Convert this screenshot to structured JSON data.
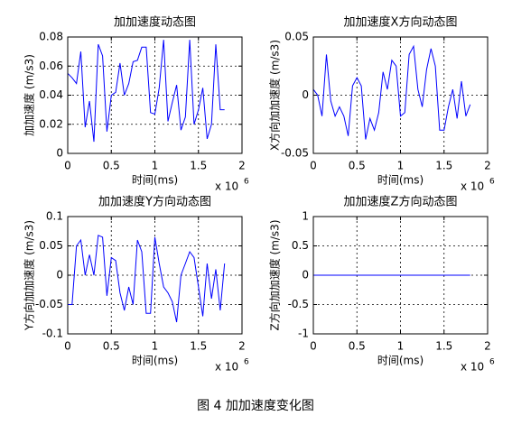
{
  "chart_data": [
    {
      "type": "line",
      "title": "加加速度动态图",
      "xlabel": "时间(ms)",
      "ylabel": "加加速度 (m/s3)",
      "x_scale": {
        "base": "x 10",
        "exponent": "6"
      },
      "xlim": [
        0,
        2
      ],
      "xticks": [
        0,
        0.5,
        1,
        1.5,
        2
      ],
      "ylim": [
        0,
        0.08
      ],
      "yticks": [
        0,
        0.02,
        0.04,
        0.06,
        0.08
      ],
      "grid": true,
      "color": "#0000ff",
      "x": [
        0,
        0.05,
        0.1,
        0.15,
        0.2,
        0.25,
        0.3,
        0.35,
        0.4,
        0.45,
        0.5,
        0.55,
        0.6,
        0.65,
        0.7,
        0.75,
        0.8,
        0.85,
        0.9,
        0.95,
        1,
        1.05,
        1.1,
        1.15,
        1.2,
        1.25,
        1.3,
        1.35,
        1.4,
        1.45,
        1.5,
        1.55,
        1.6,
        1.65,
        1.7,
        1.75,
        1.8
      ],
      "values": [
        0.055,
        0.052,
        0.048,
        0.07,
        0.018,
        0.036,
        0.008,
        0.075,
        0.067,
        0.015,
        0.04,
        0.042,
        0.062,
        0.04,
        0.048,
        0.063,
        0.064,
        0.073,
        0.073,
        0.028,
        0.027,
        0.045,
        0.078,
        0.022,
        0.035,
        0.047,
        0.016,
        0.025,
        0.078,
        0.02,
        0.03,
        0.045,
        0.01,
        0.02,
        0.075,
        0.03,
        0.03
      ]
    },
    {
      "type": "line",
      "title": "加加速度X方向动态图",
      "xlabel": "时间(ms)",
      "ylabel": "X方向加加速度 (m/s3)",
      "x_scale": {
        "base": "x 10",
        "exponent": "6"
      },
      "xlim": [
        0,
        2
      ],
      "xticks": [
        0,
        0.5,
        1,
        1.5,
        2
      ],
      "ylim": [
        -0.05,
        0.05
      ],
      "yticks": [
        -0.05,
        0,
        0.05
      ],
      "grid": true,
      "color": "#0000ff",
      "x": [
        0,
        0.05,
        0.1,
        0.15,
        0.2,
        0.25,
        0.3,
        0.35,
        0.4,
        0.45,
        0.5,
        0.55,
        0.6,
        0.65,
        0.7,
        0.75,
        0.8,
        0.85,
        0.9,
        0.95,
        1,
        1.05,
        1.1,
        1.15,
        1.2,
        1.25,
        1.3,
        1.35,
        1.4,
        1.45,
        1.5,
        1.55,
        1.6,
        1.65,
        1.7,
        1.75,
        1.8
      ],
      "values": [
        0.005,
        0,
        -0.018,
        0.035,
        -0.005,
        -0.018,
        -0.01,
        -0.018,
        -0.035,
        0.008,
        0.015,
        0.008,
        -0.038,
        -0.02,
        -0.03,
        -0.015,
        0.02,
        0.005,
        0.03,
        0.025,
        -0.018,
        -0.015,
        0.035,
        0.042,
        0.005,
        -0.01,
        0.022,
        0.04,
        0.025,
        -0.03,
        -0.03,
        -0.01,
        0.005,
        -0.02,
        0.012,
        -0.018,
        -0.008
      ]
    },
    {
      "type": "line",
      "title": "加加速度Y方向动态图",
      "xlabel": "时间(ms)",
      "ylabel": "Y方向加加速度 (m/s3)",
      "x_scale": {
        "base": "x 10",
        "exponent": "6"
      },
      "xlim": [
        0,
        2
      ],
      "xticks": [
        0,
        0.5,
        1,
        1.5,
        2
      ],
      "ylim": [
        -0.1,
        0.1
      ],
      "yticks": [
        -0.1,
        -0.05,
        0,
        0.05,
        0.1
      ],
      "grid": true,
      "color": "#0000ff",
      "x": [
        0,
        0.05,
        0.1,
        0.15,
        0.2,
        0.25,
        0.3,
        0.35,
        0.4,
        0.45,
        0.5,
        0.55,
        0.6,
        0.65,
        0.7,
        0.75,
        0.8,
        0.85,
        0.9,
        0.95,
        1,
        1.05,
        1.1,
        1.15,
        1.2,
        1.25,
        1.3,
        1.35,
        1.4,
        1.45,
        1.5,
        1.55,
        1.6,
        1.65,
        1.7,
        1.75,
        1.8
      ],
      "values": [
        -0.05,
        -0.05,
        0.05,
        0.06,
        0,
        0.035,
        0,
        0.068,
        0.065,
        -0.035,
        0.03,
        0.025,
        -0.03,
        -0.06,
        -0.02,
        -0.05,
        0.06,
        0.04,
        -0.065,
        -0.065,
        0.065,
        0.02,
        -0.02,
        -0.03,
        -0.045,
        -0.08,
        0,
        0.02,
        0.04,
        0.03,
        -0.02,
        -0.07,
        0.02,
        -0.04,
        0.01,
        -0.06,
        0.02
      ]
    },
    {
      "type": "line",
      "title": "加加速度Z方向动态图",
      "xlabel": "时间(ms)",
      "ylabel": "Z方向加加速度 (m/s3)",
      "x_scale": {
        "base": "x 10",
        "exponent": "6"
      },
      "xlim": [
        0,
        2
      ],
      "xticks": [
        0,
        0.5,
        1,
        1.5,
        2
      ],
      "ylim": [
        -1,
        1
      ],
      "yticks": [
        -1,
        -0.5,
        0,
        0.5,
        1
      ],
      "grid": true,
      "color": "#0000ff",
      "x": [
        0,
        0.05,
        0.1,
        0.15,
        0.2,
        0.25,
        0.3,
        0.35,
        0.4,
        0.45,
        0.5,
        0.55,
        0.6,
        0.65,
        0.7,
        0.75,
        0.8,
        0.85,
        0.9,
        0.95,
        1,
        1.05,
        1.1,
        1.15,
        1.2,
        1.25,
        1.3,
        1.35,
        1.4,
        1.45,
        1.5,
        1.55,
        1.6,
        1.65,
        1.7,
        1.75,
        1.8
      ],
      "values": [
        0,
        0,
        0,
        0,
        0,
        0,
        0,
        0,
        0,
        0,
        0,
        0,
        0,
        0,
        0,
        0,
        0,
        0,
        0,
        0,
        0,
        0,
        0,
        0,
        0,
        0,
        0,
        0,
        0,
        0,
        0,
        0,
        0,
        0,
        0,
        0,
        0
      ]
    }
  ],
  "caption": "图 4  加加速度变化图"
}
